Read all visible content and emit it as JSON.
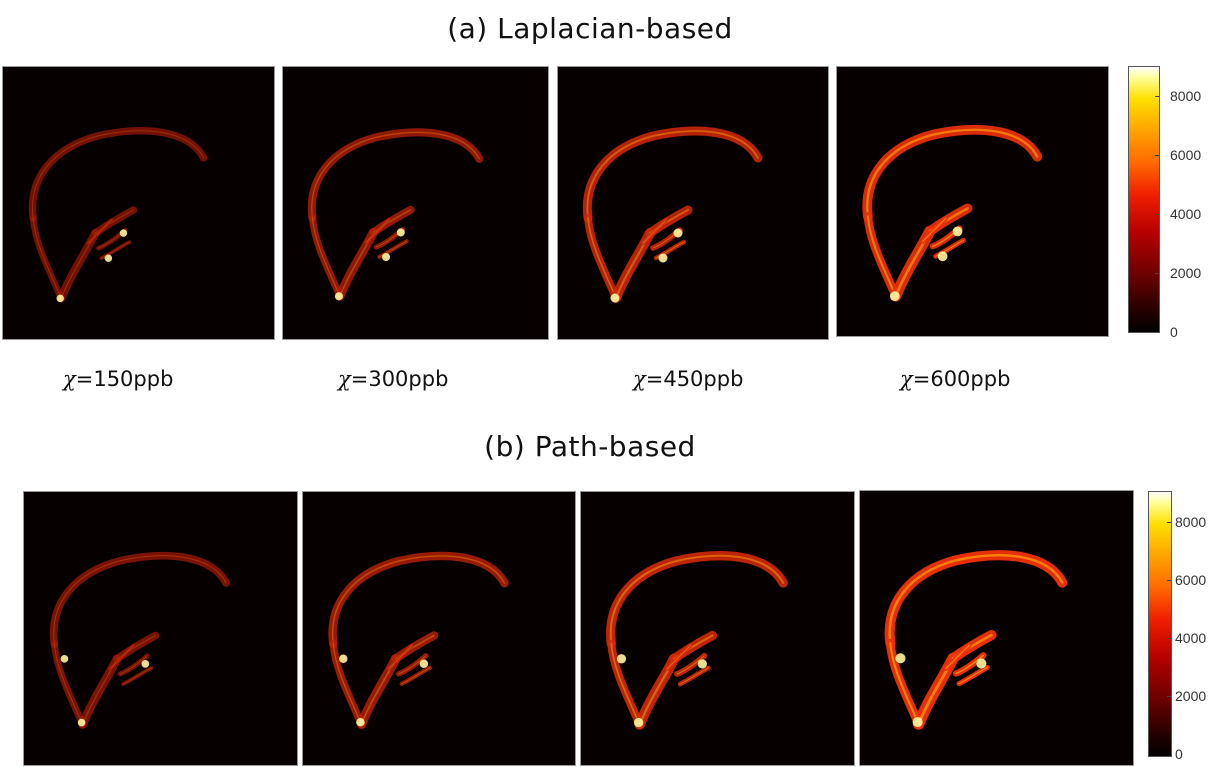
{
  "rows": [
    {
      "title": "(a)  Laplacian-based",
      "labels": [
        {
          "chi": "χ",
          "text": "=150ppb"
        },
        {
          "chi": "χ",
          "text": "=300ppb"
        },
        {
          "chi": "χ",
          "text": "=450ppb"
        },
        {
          "chi": "χ",
          "text": "=600ppb"
        }
      ],
      "colorbar_ticks": [
        "8000",
        "6000",
        "4000",
        "2000",
        "0"
      ]
    },
    {
      "title": "(b)  Path-based",
      "colorbar_ticks": [
        "8000",
        "6000",
        "4000",
        "2000",
        "0"
      ]
    }
  ],
  "colormap": {
    "name": "hot",
    "stops": [
      "#000000",
      "#6e0000",
      "#f02000",
      "#ffa800",
      "#ffff9a",
      "#ffffff"
    ]
  },
  "colorbar_range": [
    0,
    9000
  ]
}
